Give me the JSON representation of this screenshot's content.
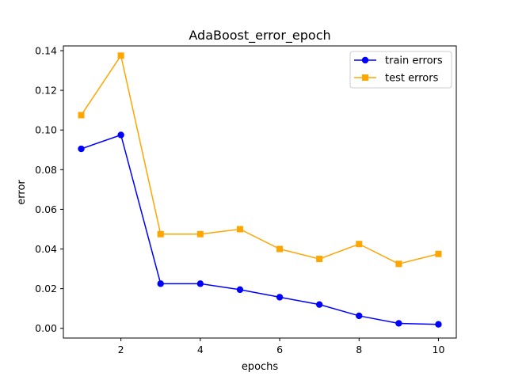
{
  "chart_data": {
    "type": "line",
    "title": "AdaBoost_error_epoch",
    "xlabel": "epochs",
    "ylabel": "error",
    "xlim": [
      0.55,
      10.45
    ],
    "ylim": [
      -0.0049,
      0.1424
    ],
    "xticks": [
      2,
      4,
      6,
      8,
      10
    ],
    "yticks": [
      0.0,
      0.02,
      0.04,
      0.06,
      0.08,
      0.1,
      0.12,
      0.14
    ],
    "ytick_labels": [
      "0.00",
      "0.02",
      "0.04",
      "0.06",
      "0.08",
      "0.10",
      "0.12",
      "0.14"
    ],
    "grid": false,
    "legend_position": "top-right",
    "x": [
      1,
      2,
      3,
      4,
      5,
      6,
      7,
      8,
      9,
      10
    ],
    "series": [
      {
        "name": "train errors",
        "color": "#0000ff",
        "marker": "circle",
        "values": [
          0.0905,
          0.0975,
          0.0225,
          0.0225,
          0.0195,
          0.0157,
          0.012,
          0.0063,
          0.0025,
          0.002
        ]
      },
      {
        "name": "test errors",
        "color": "#ffa500",
        "marker": "square",
        "values": [
          0.1075,
          0.1375,
          0.0475,
          0.0475,
          0.05,
          0.04,
          0.035,
          0.0425,
          0.0325,
          0.0375
        ]
      }
    ]
  }
}
